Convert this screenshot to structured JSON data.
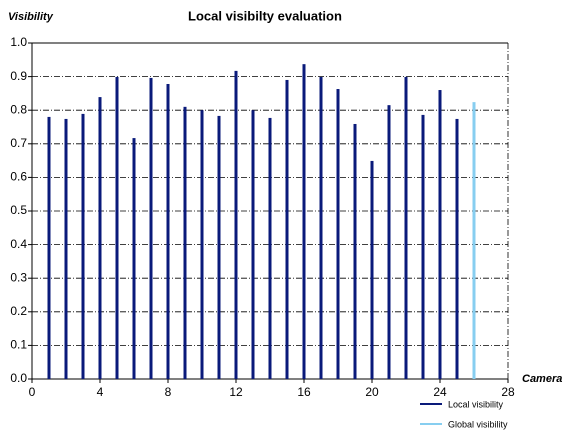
{
  "chart_data": {
    "type": "bar",
    "title": "Local visibilty evaluation",
    "y_label": "Visibility",
    "x_label": "Camera",
    "series": [
      {
        "name": "Local visibility",
        "color": "#0a1a7a",
        "x": [
          1,
          2,
          3,
          4,
          5,
          6,
          7,
          8,
          9,
          10,
          11,
          12,
          13,
          14,
          15,
          16,
          17,
          18,
          19,
          20,
          21,
          22,
          23,
          24,
          25
        ],
        "values": [
          0.78,
          0.774,
          0.789,
          0.839,
          0.899,
          0.717,
          0.896,
          0.878,
          0.81,
          0.8,
          0.783,
          0.917,
          0.8,
          0.777,
          0.89,
          0.937,
          0.899,
          0.863,
          0.759,
          0.649,
          0.815,
          0.899,
          0.786,
          0.86,
          0.774
        ]
      },
      {
        "name": "Global visibility",
        "color": "#87cef0",
        "x": [
          26
        ],
        "values": [
          0.824
        ]
      }
    ],
    "xlim": [
      0,
      28
    ],
    "xticks": [
      0,
      4,
      8,
      12,
      16,
      20,
      24,
      28
    ],
    "ylim": [
      0,
      1
    ],
    "yticks": [
      {
        "value": 0,
        "label": "0.0"
      },
      {
        "value": 0.1,
        "label": "0.1"
      },
      {
        "value": 0.2,
        "label": "0.2"
      },
      {
        "value": 0.3,
        "label": "0.3"
      },
      {
        "value": 0.4,
        "label": "0.4"
      },
      {
        "value": 0.5,
        "label": "0.5"
      },
      {
        "value": 0.6,
        "label": "0.6"
      },
      {
        "value": 0.7,
        "label": "0.7"
      },
      {
        "value": 0.8,
        "label": "0.8"
      },
      {
        "value": 0.9,
        "label": "0.9"
      },
      {
        "value": 1,
        "label": "1.0"
      }
    ],
    "grid": true,
    "legend": "bottom-right"
  }
}
